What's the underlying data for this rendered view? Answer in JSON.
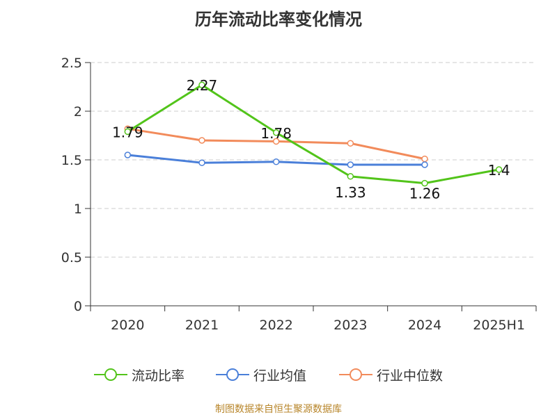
{
  "chart_data": {
    "type": "line",
    "title": "历年流动比率变化情况",
    "categories": [
      "2020",
      "2021",
      "2022",
      "2023",
      "2024",
      "2025H1"
    ],
    "ylim": [
      0,
      2.5
    ],
    "yticks": [
      "0",
      "0.5",
      "1",
      "1.5",
      "2",
      "2.5"
    ],
    "grid": true,
    "legend_position": "bottom",
    "series": [
      {
        "name": "流动比率",
        "color": "#52c41a",
        "values": [
          1.79,
          2.27,
          1.78,
          1.33,
          1.26,
          1.4
        ],
        "labels": [
          "1.79",
          "2.27",
          "1.78",
          "1.33",
          "1.26",
          "1.4"
        ]
      },
      {
        "name": "行业均值",
        "color": "#4a7fd9",
        "values": [
          1.55,
          1.47,
          1.48,
          1.45,
          1.45,
          null
        ],
        "labels": null
      },
      {
        "name": "行业中位数",
        "color": "#f28b5b",
        "values": [
          1.82,
          1.7,
          1.69,
          1.67,
          1.51,
          null
        ],
        "labels": null
      }
    ]
  },
  "footer": {
    "source": "制图数据来自恒生聚源数据库"
  }
}
